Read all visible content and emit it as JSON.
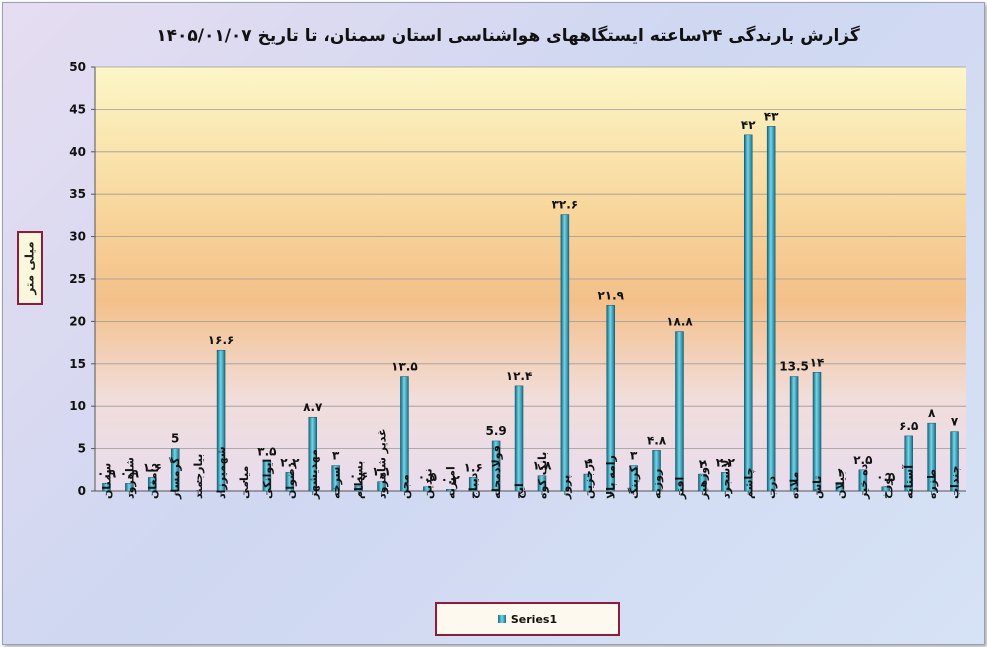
{
  "chart_data": {
    "type": "bar",
    "title": "گزارش بارندگی ۲۴ساعته ایستگاههای هواشناسی استان سمنان، تا تاریخ ۱۴۰۵/۰۱/۰۷",
    "xlabel": "",
    "ylabel": "میلی متر",
    "ylim": [
      0,
      50
    ],
    "yticks": [
      0,
      5,
      10,
      15,
      20,
      25,
      30,
      35,
      40,
      45,
      50
    ],
    "grid": true,
    "legend_position": "bottom",
    "bar_color": "#2a98b0",
    "categories": [
      "سمنان",
      "شاهرود",
      "دامغان",
      "گرمسار",
      "بیارجمند",
      "شهمیرزاد",
      "میامی",
      "ایوانکی",
      "رضوان",
      "مهدیشهر",
      "سرخه",
      "بسطام",
      "غدیر شاهرود",
      "مجن",
      "نردین",
      "امیریه",
      "دیباج",
      "فولادمحله",
      "ایج",
      "بانک کوه",
      "پرور",
      "درجزین",
      "رامه بالا",
      "کرینگ",
      "روزیه",
      "افتر",
      "دوزهیر",
      "لاسجرد",
      "چاشم",
      "درب",
      "ملاده",
      "تاش",
      "جیلان",
      "ده خیر",
      "دوزخ",
      "آستانه",
      "طزره",
      "جنداب"
    ],
    "series": [
      {
        "name": "Series1",
        "values": [
          0.9,
          0.9,
          1.6,
          5,
          0,
          16.6,
          0,
          3.5,
          2.2,
          8.7,
          3,
          0.6,
          1.1,
          13.5,
          0.5,
          0.2,
          1.6,
          5.9,
          12.4,
          1.8,
          32.6,
          2,
          21.9,
          3,
          4.8,
          18.8,
          2,
          2.2,
          42,
          43,
          13.5,
          14,
          1,
          2.5,
          0.5,
          6.5,
          8,
          7
        ],
        "labels": [
          "۰.۹",
          "۰.۹",
          "۱.۶",
          "5",
          "۰",
          "۱۶.۶",
          "۰",
          "۳.۵",
          "۲.۲",
          "۸.۷",
          "۳",
          "۰.۶",
          "۱.۱",
          "۱۳.۵",
          "۰.۵",
          "۰.۲",
          "۱.۶",
          "5.9",
          "۱۲.۴",
          "۱.۸",
          "۳۲.۶",
          "۲",
          "۲۱.۹",
          "۳",
          "۴.۸",
          "۱۸.۸",
          "۲",
          "۲.۲",
          "۴۲",
          "۴۳",
          "13.5",
          "۱۴",
          "۱",
          "۲.۵",
          "۰.۵",
          "۶.۵",
          "۸",
          "۷"
        ]
      }
    ]
  }
}
